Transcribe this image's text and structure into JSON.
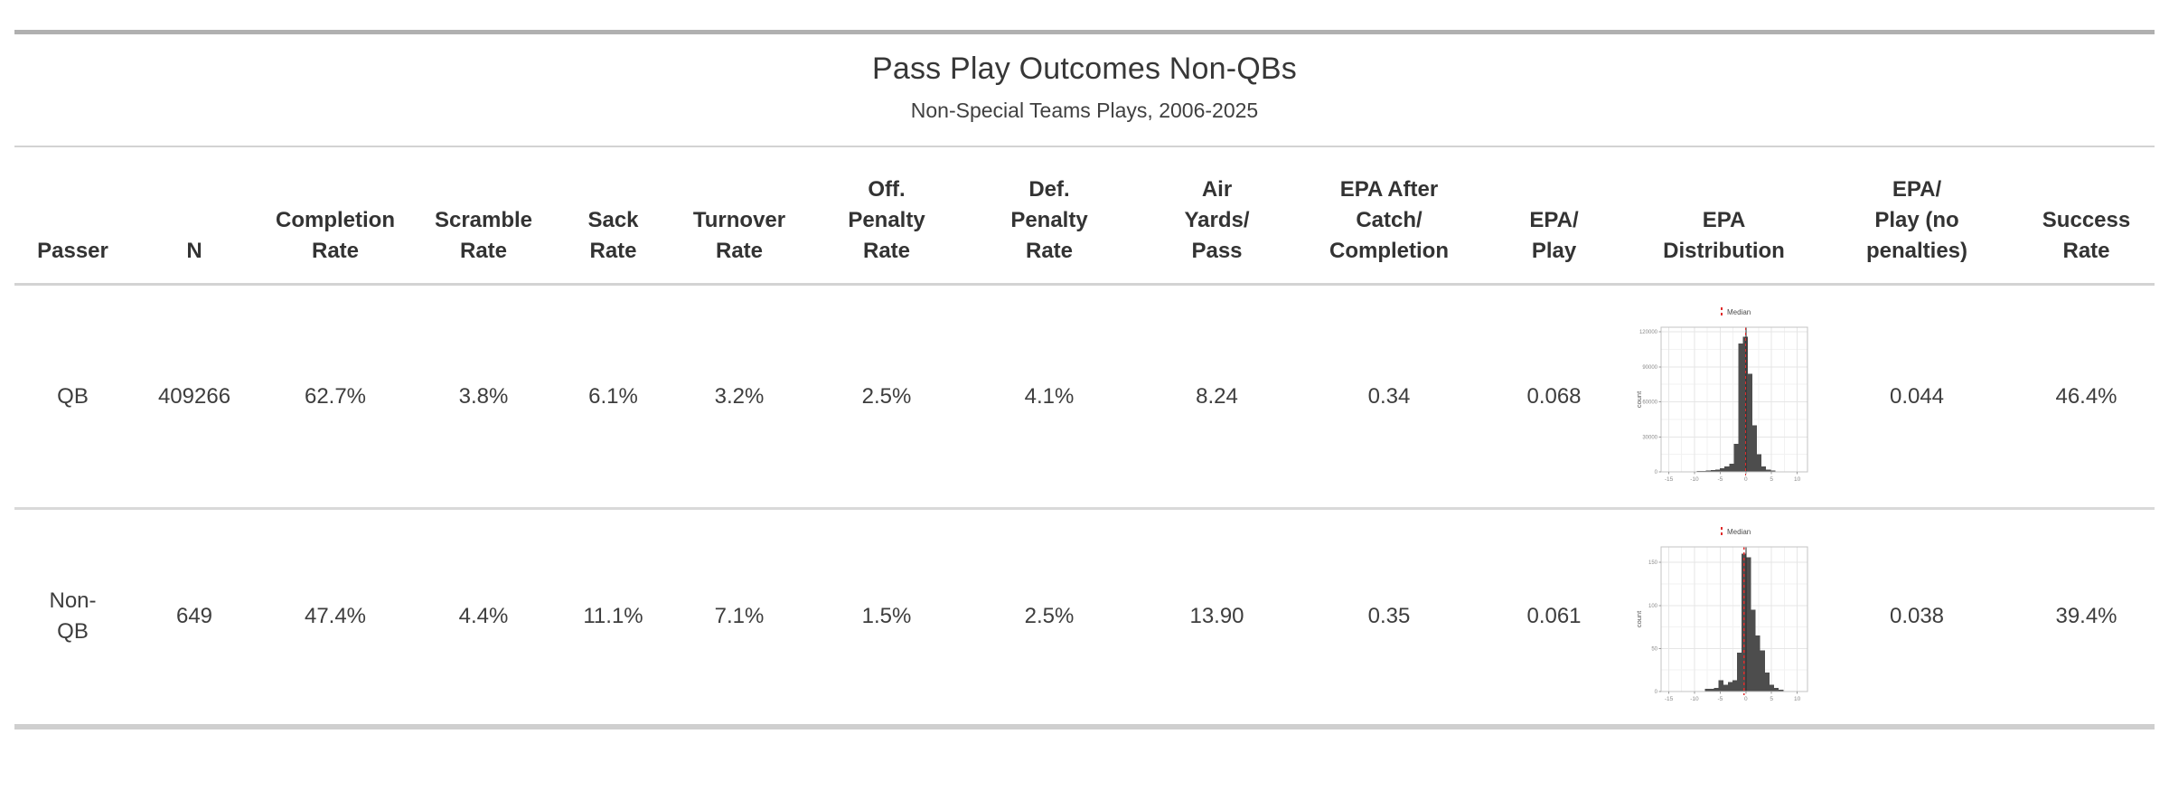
{
  "table": {
    "title": "Pass Play Outcomes Non-QBs",
    "subtitle": "Non-Special Teams Plays, 2006-2025",
    "columns": [
      {
        "id": "passer",
        "label": "Passer"
      },
      {
        "id": "n",
        "label": "N"
      },
      {
        "id": "completion_rate",
        "label": "Completion\nRate"
      },
      {
        "id": "scramble_rate",
        "label": "Scramble\nRate"
      },
      {
        "id": "sack_rate",
        "label": "Sack\nRate"
      },
      {
        "id": "turnover_rate",
        "label": "Turnover\nRate"
      },
      {
        "id": "off_penalty_rate",
        "label": "Off.\nPenalty\nRate"
      },
      {
        "id": "def_penalty_rate",
        "label": "Def.\nPenalty\nRate"
      },
      {
        "id": "air_yards_per_pass",
        "label": "Air\nYards/\nPass"
      },
      {
        "id": "epa_after_catch_completion",
        "label": "EPA After\nCatch/\nCompletion"
      },
      {
        "id": "epa_per_play",
        "label": "EPA/\nPlay"
      },
      {
        "id": "epa_distribution",
        "label": "EPA\nDistribution"
      },
      {
        "id": "epa_per_play_no_penalties",
        "label": "EPA/\nPlay (no\npenalties)"
      },
      {
        "id": "success_rate",
        "label": "Success\nRate"
      }
    ],
    "rows": [
      {
        "passer": "QB",
        "n": "409266",
        "completion_rate": "62.7%",
        "scramble_rate": "3.8%",
        "sack_rate": "6.1%",
        "turnover_rate": "3.2%",
        "off_penalty_rate": "2.5%",
        "def_penalty_rate": "4.1%",
        "air_yards_per_pass": "8.24",
        "epa_after_catch_completion": "0.34",
        "epa_per_play": "0.068",
        "epa_per_play_no_penalties": "0.044",
        "success_rate": "46.4%"
      },
      {
        "passer": "Non-\nQB",
        "n": "649",
        "completion_rate": "47.4%",
        "scramble_rate": "4.4%",
        "sack_rate": "11.1%",
        "turnover_rate": "7.1%",
        "off_penalty_rate": "1.5%",
        "def_penalty_rate": "2.5%",
        "air_yards_per_pass": "13.90",
        "epa_after_catch_completion": "0.35",
        "epa_per_play": "0.061",
        "epa_per_play_no_penalties": "0.038",
        "success_rate": "39.4%"
      }
    ]
  },
  "colors": {
    "top_border": "#b0b0b0",
    "bottom_border": "#cfcfcf",
    "inner_rule": "#d3d3d3",
    "text": "#3b3b3b"
  },
  "chart_data": [
    {
      "type": "histogram",
      "row": "QB",
      "legend_label": "Median",
      "ylabel": "count",
      "x_ticks": [
        -15,
        -10,
        -5,
        0,
        5,
        10
      ],
      "y_ticks": [
        0,
        30000,
        60000,
        90000,
        120000
      ],
      "xlim": [
        -16.5,
        12
      ],
      "ylim": [
        0,
        124000
      ],
      "bin_start": -10.45,
      "bin_width": 0.9,
      "counts": [
        400,
        600,
        800,
        1000,
        1500,
        2000,
        3000,
        4500,
        7000,
        24000,
        110000,
        116000,
        84000,
        40000,
        15000,
        4500,
        2000,
        1000,
        500
      ],
      "median_x": -0.05,
      "zero_line_x": 0,
      "bar_color": "#4d4d4d",
      "median_color": "#e02c2c",
      "zero_line_color": "#2a2a2a",
      "grid_major": "#e6e6e6",
      "grid_minor": "#f2f2f2",
      "panel_border": "#c3c3c3",
      "tick_text": "#8a8a8a"
    },
    {
      "type": "histogram",
      "row": "Non-QB",
      "legend_label": "Median",
      "ylabel": "count",
      "x_ticks": [
        -15,
        -10,
        -5,
        0,
        5,
        10
      ],
      "y_ticks": [
        0,
        50,
        100,
        150
      ],
      "xlim": [
        -16.5,
        12
      ],
      "ylim": [
        0,
        168
      ],
      "bin_start": -8,
      "bin_width": 0.9,
      "counts": [
        3,
        3,
        4,
        13,
        8,
        11,
        13,
        45,
        160,
        156,
        95,
        65,
        48,
        22,
        8,
        4,
        2
      ],
      "median_x": -0.35,
      "zero_line_x": 0,
      "bar_color": "#4d4d4d",
      "median_color": "#e02c2c",
      "zero_line_color": "#2a2a2a",
      "grid_major": "#e6e6e6",
      "grid_minor": "#f2f2f2",
      "panel_border": "#c3c3c3",
      "tick_text": "#8a8a8a"
    }
  ]
}
